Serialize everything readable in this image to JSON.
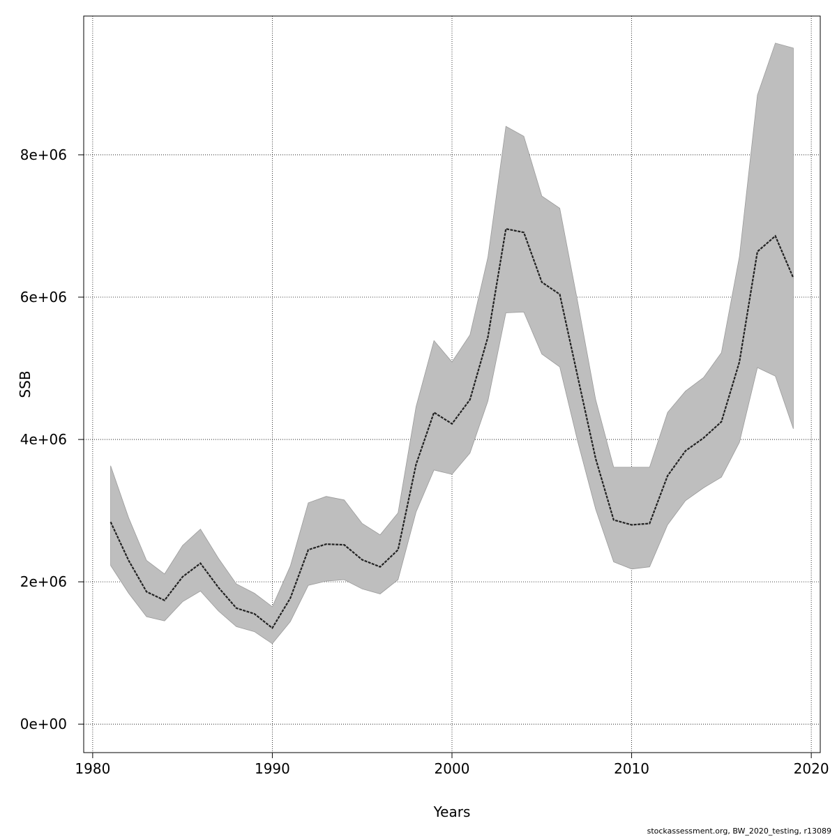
{
  "chart_data": {
    "type": "area",
    "xlabel": "Years",
    "ylabel": "SSB",
    "xlim": [
      1979.5,
      2020.5
    ],
    "ylim": [
      -400000,
      9950000
    ],
    "x_ticks": [
      1980,
      1990,
      2000,
      2010,
      2020
    ],
    "x_tick_labels": [
      "1980",
      "1990",
      "2000",
      "2010",
      "2020"
    ],
    "y_ticks": [
      0,
      2000000,
      4000000,
      6000000,
      8000000
    ],
    "y_tick_labels": [
      "0e+00",
      "2e+06",
      "4e+06",
      "6e+06",
      "8e+06"
    ],
    "grid": true,
    "band_color": "#bebebe",
    "line_color": "#222222",
    "x": [
      1981,
      1982,
      1983,
      1984,
      1985,
      1986,
      1987,
      1988,
      1989,
      1990,
      1991,
      1992,
      1993,
      1994,
      1995,
      1996,
      1997,
      1998,
      1999,
      2000,
      2001,
      2002,
      2003,
      2004,
      2005,
      2006,
      2007,
      2008,
      2009,
      2010,
      2011,
      2012,
      2013,
      2014,
      2015,
      2016,
      2017,
      2018,
      2019
    ],
    "series": [
      {
        "values": [
          2840000,
          2300000,
          1860000,
          1740000,
          2070000,
          2260000,
          1920000,
          1630000,
          1550000,
          1350000,
          1770000,
          2450000,
          2530000,
          2520000,
          2310000,
          2210000,
          2450000,
          3650000,
          4380000,
          4220000,
          4560000,
          5440000,
          6960000,
          6910000,
          6210000,
          6040000,
          4880000,
          3730000,
          2870000,
          2800000,
          2820000,
          3490000,
          3840000,
          4020000,
          4250000,
          5090000,
          6640000,
          6860000,
          6270000
        ]
      }
    ],
    "band": {
      "lower": [
        2230000,
        1840000,
        1510000,
        1450000,
        1720000,
        1870000,
        1590000,
        1370000,
        1300000,
        1130000,
        1440000,
        1950000,
        2010000,
        2030000,
        1900000,
        1830000,
        2030000,
        2980000,
        3570000,
        3510000,
        3810000,
        4540000,
        5780000,
        5790000,
        5200000,
        5020000,
        3970000,
        3020000,
        2280000,
        2180000,
        2210000,
        2800000,
        3140000,
        3320000,
        3470000,
        3960000,
        5010000,
        4890000,
        4150000
      ],
      "upper": [
        3630000,
        2900000,
        2300000,
        2110000,
        2510000,
        2740000,
        2330000,
        1970000,
        1840000,
        1650000,
        2220000,
        3110000,
        3200000,
        3150000,
        2820000,
        2660000,
        2970000,
        4460000,
        5390000,
        5090000,
        5470000,
        6560000,
        8400000,
        8260000,
        7420000,
        7250000,
        5930000,
        4560000,
        3610000,
        3610000,
        3610000,
        4380000,
        4680000,
        4870000,
        5220000,
        6570000,
        8840000,
        9570000,
        9500000
      ]
    }
  },
  "footer": {
    "text": "stockassessment.org, BW_2020_testing, r13089"
  }
}
